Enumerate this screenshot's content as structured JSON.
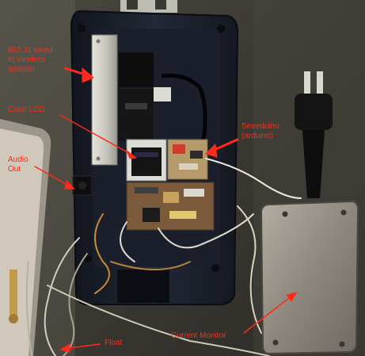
{
  "scene": {
    "labels": {
      "wireless": "802.11 wired to wireless adapter",
      "wireless_lines": [
        "802.11 wired",
        "to wireless",
        "adapter"
      ],
      "color_lcd": "Color LCD",
      "seeeduino": "Seeeduino (arduino)",
      "seeeduino_lines": [
        "Seeeduino",
        "(arduino)"
      ],
      "audio_out": "Audio Out",
      "audio_out_lines": [
        "Audio",
        "Out"
      ],
      "current_monitor": "Current Monitor",
      "float": "Float"
    },
    "colors": {
      "annotation": "#ff2a1a",
      "enclosure": "#1b1f2a",
      "adapter": "#c8c8c0",
      "circuit_board": "#7a5a3a",
      "monitor_plate": "#9a958c",
      "lcd_screen": "#1a1a1a",
      "background": "#3b3b34"
    },
    "objects": [
      "enclosure",
      "wireless-adapter",
      "color-lcd",
      "seeeduino-board",
      "audio-jack",
      "current-monitor-box",
      "power-plug",
      "float-sensor",
      "wire-bundle"
    ]
  }
}
